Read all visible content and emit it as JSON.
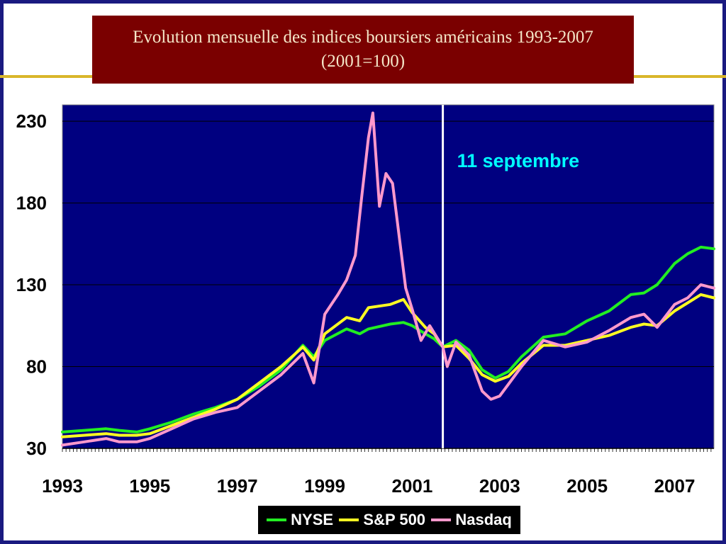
{
  "title": {
    "line1": "Evolution mensuelle des indices boursiers américains 1993-2007",
    "line2": "(2001=100)"
  },
  "colors": {
    "plot_bg": "#000080",
    "nyse": "#22ee22",
    "sp500": "#ffff22",
    "nasdaq": "#ff99cc",
    "annotation": "#00ffff",
    "title_bg": "#7a0000"
  },
  "chart_data": {
    "type": "line",
    "title": "Evolution mensuelle des indices boursiers américains 1993-2007 (2001=100)",
    "xlabel": "",
    "ylabel": "",
    "xlim": [
      1993,
      2007.9
    ],
    "ylim": [
      30,
      240
    ],
    "yticks": [
      30,
      80,
      130,
      180,
      230
    ],
    "xticks": [
      1993,
      1995,
      1997,
      1999,
      2001,
      2003,
      2005,
      2007
    ],
    "grid": "horizontal",
    "legend_position": "bottom",
    "annotations": [
      {
        "text": "11 septembre",
        "x": 2001.7
      }
    ],
    "series": [
      {
        "name": "NYSE",
        "points": [
          [
            1993.0,
            40
          ],
          [
            1993.5,
            41
          ],
          [
            1994.0,
            42
          ],
          [
            1994.3,
            41
          ],
          [
            1994.7,
            40
          ],
          [
            1995.0,
            42
          ],
          [
            1995.5,
            46
          ],
          [
            1996.0,
            51
          ],
          [
            1996.5,
            55
          ],
          [
            1997.0,
            60
          ],
          [
            1997.5,
            68
          ],
          [
            1998.0,
            78
          ],
          [
            1998.5,
            93
          ],
          [
            1998.75,
            86
          ],
          [
            1999.0,
            96
          ],
          [
            1999.5,
            103
          ],
          [
            1999.8,
            100
          ],
          [
            2000.0,
            103
          ],
          [
            2000.5,
            106
          ],
          [
            2000.8,
            107
          ],
          [
            2001.0,
            105
          ],
          [
            2001.3,
            100
          ],
          [
            2001.5,
            97
          ],
          [
            2001.7,
            92
          ],
          [
            2002.0,
            96
          ],
          [
            2002.3,
            90
          ],
          [
            2002.6,
            78
          ],
          [
            2002.9,
            73
          ],
          [
            2003.2,
            77
          ],
          [
            2003.5,
            86
          ],
          [
            2004.0,
            98
          ],
          [
            2004.5,
            100
          ],
          [
            2005.0,
            108
          ],
          [
            2005.5,
            114
          ],
          [
            2006.0,
            124
          ],
          [
            2006.3,
            125
          ],
          [
            2006.6,
            130
          ],
          [
            2007.0,
            143
          ],
          [
            2007.3,
            149
          ],
          [
            2007.6,
            153
          ],
          [
            2007.9,
            152
          ]
        ]
      },
      {
        "name": "S&P 500",
        "points": [
          [
            1993.0,
            37
          ],
          [
            1993.5,
            38
          ],
          [
            1994.0,
            39
          ],
          [
            1994.3,
            38
          ],
          [
            1994.7,
            38
          ],
          [
            1995.0,
            39
          ],
          [
            1995.5,
            44
          ],
          [
            1996.0,
            49
          ],
          [
            1996.5,
            54
          ],
          [
            1997.0,
            60
          ],
          [
            1997.5,
            70
          ],
          [
            1998.0,
            80
          ],
          [
            1998.5,
            92
          ],
          [
            1998.75,
            84
          ],
          [
            1999.0,
            100
          ],
          [
            1999.5,
            110
          ],
          [
            1999.8,
            108
          ],
          [
            2000.0,
            116
          ],
          [
            2000.5,
            118
          ],
          [
            2000.8,
            121
          ],
          [
            2001.0,
            113
          ],
          [
            2001.3,
            104
          ],
          [
            2001.5,
            100
          ],
          [
            2001.7,
            92
          ],
          [
            2002.0,
            93
          ],
          [
            2002.3,
            85
          ],
          [
            2002.6,
            75
          ],
          [
            2002.9,
            71
          ],
          [
            2003.2,
            74
          ],
          [
            2003.5,
            82
          ],
          [
            2004.0,
            93
          ],
          [
            2004.5,
            93
          ],
          [
            2005.0,
            96
          ],
          [
            2005.5,
            99
          ],
          [
            2006.0,
            104
          ],
          [
            2006.3,
            106
          ],
          [
            2006.6,
            105
          ],
          [
            2007.0,
            114
          ],
          [
            2007.3,
            119
          ],
          [
            2007.6,
            124
          ],
          [
            2007.9,
            122
          ]
        ]
      },
      {
        "name": "Nasdaq",
        "points": [
          [
            1993.0,
            32
          ],
          [
            1993.5,
            34
          ],
          [
            1994.0,
            36
          ],
          [
            1994.3,
            34
          ],
          [
            1994.7,
            34
          ],
          [
            1995.0,
            36
          ],
          [
            1995.5,
            42
          ],
          [
            1996.0,
            48
          ],
          [
            1996.5,
            52
          ],
          [
            1997.0,
            55
          ],
          [
            1997.5,
            65
          ],
          [
            1998.0,
            75
          ],
          [
            1998.5,
            88
          ],
          [
            1998.75,
            70
          ],
          [
            1999.0,
            112
          ],
          [
            1999.3,
            124
          ],
          [
            1999.5,
            133
          ],
          [
            1999.7,
            148
          ],
          [
            1999.85,
            185
          ],
          [
            2000.0,
            220
          ],
          [
            2000.1,
            235
          ],
          [
            2000.25,
            178
          ],
          [
            2000.4,
            198
          ],
          [
            2000.55,
            192
          ],
          [
            2000.7,
            160
          ],
          [
            2000.85,
            128
          ],
          [
            2001.0,
            115
          ],
          [
            2001.2,
            96
          ],
          [
            2001.4,
            105
          ],
          [
            2001.7,
            92
          ],
          [
            2001.8,
            80
          ],
          [
            2002.0,
            95
          ],
          [
            2002.3,
            87
          ],
          [
            2002.6,
            65
          ],
          [
            2002.8,
            60
          ],
          [
            2003.0,
            62
          ],
          [
            2003.5,
            80
          ],
          [
            2004.0,
            96
          ],
          [
            2004.5,
            92
          ],
          [
            2005.0,
            95
          ],
          [
            2005.5,
            102
          ],
          [
            2006.0,
            110
          ],
          [
            2006.3,
            112
          ],
          [
            2006.6,
            104
          ],
          [
            2007.0,
            118
          ],
          [
            2007.3,
            122
          ],
          [
            2007.6,
            130
          ],
          [
            2007.9,
            128
          ]
        ]
      }
    ]
  }
}
